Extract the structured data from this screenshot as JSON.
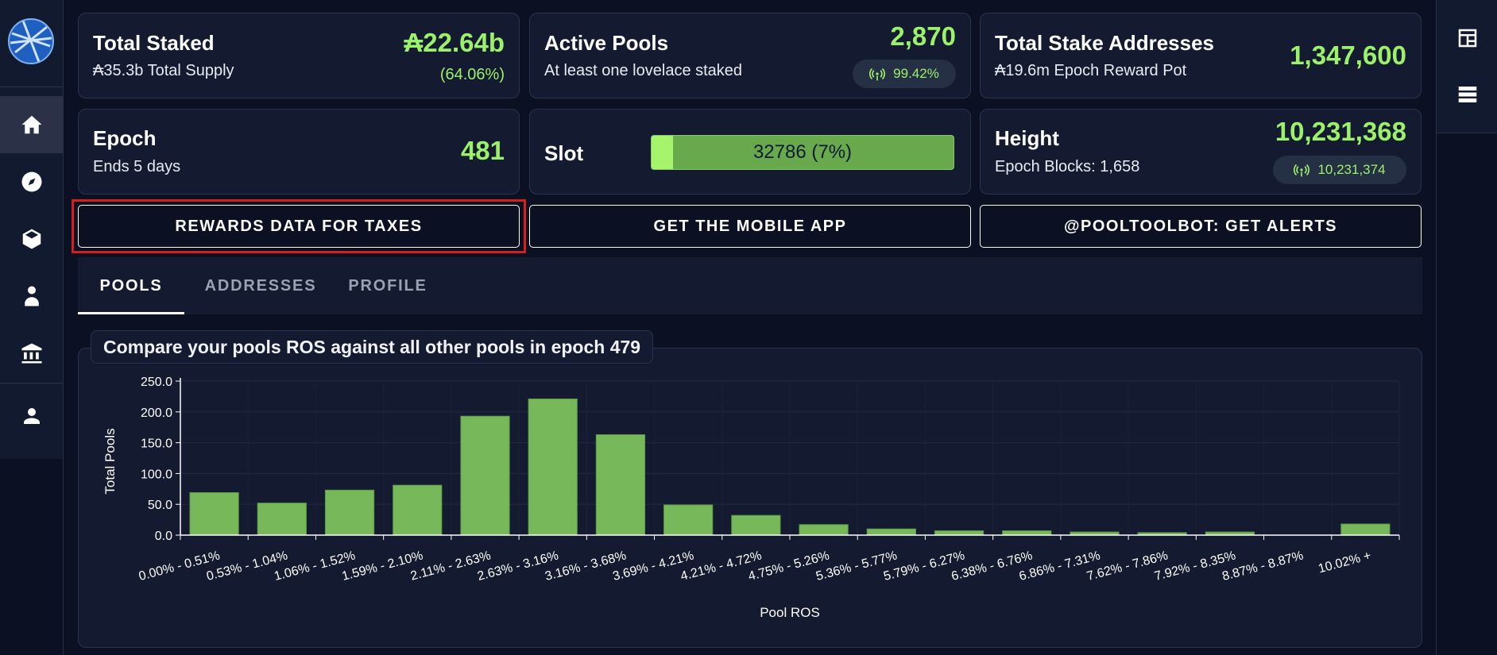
{
  "stats": {
    "total_staked": {
      "title": "Total Staked",
      "value": "₳22.64b",
      "sub": "₳35.3b Total Supply",
      "pct": "(64.06%)"
    },
    "active_pools": {
      "title": "Active Pools",
      "value": "2,870",
      "sub": "At least one lovelace staked",
      "pill": "99.42%"
    },
    "stake_addresses": {
      "title": "Total Stake Addresses",
      "value": "1,347,600",
      "sub": "₳19.6m Epoch Reward Pot"
    },
    "epoch": {
      "title": "Epoch",
      "value": "481",
      "sub": "Ends 5 days"
    },
    "slot": {
      "title": "Slot",
      "progress_text": "32786 (7%)",
      "progress_fraction": 0.07
    },
    "height": {
      "title": "Height",
      "value": "10,231,368",
      "sub": "Epoch Blocks: 1,658",
      "pill": "10,231,374"
    }
  },
  "buttons": {
    "rewards": "REWARDS DATA FOR TAXES",
    "mobile": "GET THE MOBILE APP",
    "bot": "@POOLTOOLBOT: GET ALERTS"
  },
  "tabs": [
    "POOLS",
    "ADDRESSES",
    "PROFILE"
  ],
  "sidebar_icons": [
    "home-icon",
    "compass-icon",
    "cube-icon",
    "doctor-icon",
    "bank-icon",
    "user-icon"
  ],
  "right_icons": [
    "calendar-table-icon",
    "list-icon"
  ],
  "colors": {
    "accent": "#9cf16b",
    "bar": "#77b85a",
    "highlight": "#d51e1e"
  },
  "chart_title": "Compare your pools ROS against all other pools in epoch 479",
  "chart_data": {
    "type": "bar",
    "title": "Compare your pools ROS against all other pools in epoch 479",
    "xlabel": "Pool ROS",
    "ylabel": "Total Pools",
    "ylim": [
      0,
      250
    ],
    "yticks": [
      "0.0",
      "50.0",
      "100.0",
      "150.0",
      "200.0",
      "250.0"
    ],
    "categories": [
      "0.00% - 0.51%",
      "0.53% - 1.04%",
      "1.06% - 1.52%",
      "1.59% - 2.10%",
      "2.11% - 2.63%",
      "2.63% - 3.16%",
      "3.16% - 3.68%",
      "3.69% - 4.21%",
      "4.21% - 4.72%",
      "4.75% - 5.26%",
      "5.36% - 5.77%",
      "5.79% - 6.27%",
      "6.38% - 6.76%",
      "6.86% - 7.31%",
      "7.62% - 7.86%",
      "7.92% - 8.35%",
      "8.87% - 8.87%",
      "10.02% +"
    ],
    "values": [
      69,
      52,
      73,
      81,
      193,
      221,
      163,
      49,
      32,
      17,
      10,
      7,
      7,
      5,
      4,
      5,
      0,
      18
    ],
    "grid": true
  }
}
